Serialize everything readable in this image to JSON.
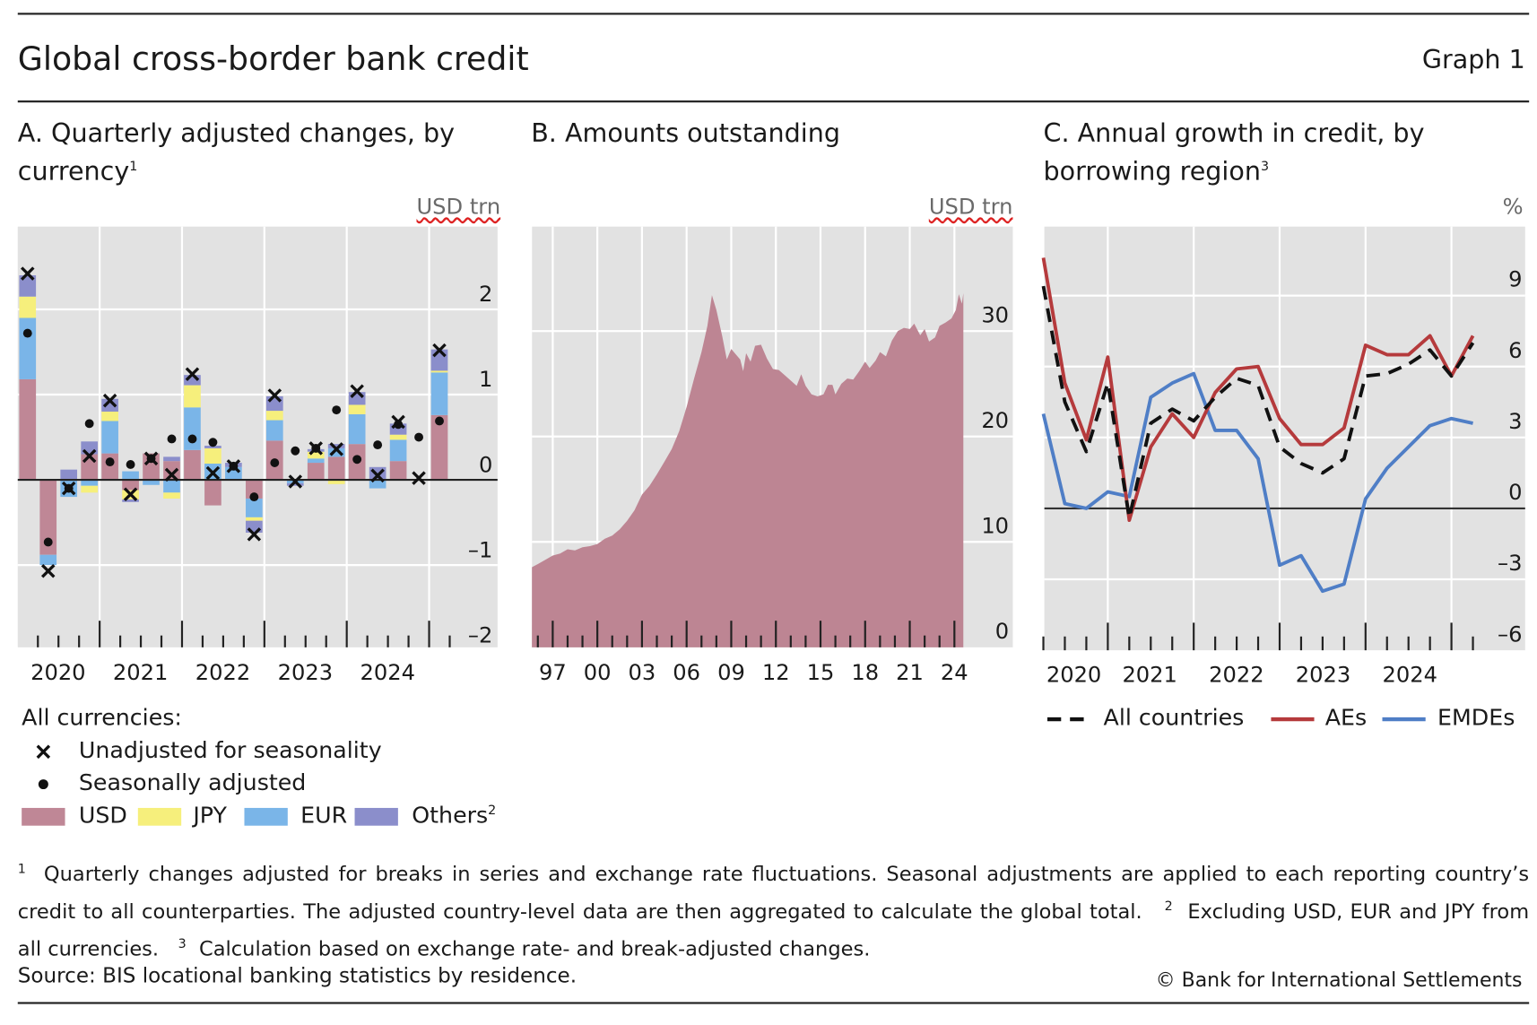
{
  "header": {
    "title": "Global cross-border bank credit",
    "graph_number": "Graph 1"
  },
  "colors": {
    "usd": "#bf8796",
    "jpy": "#f6ef7c",
    "eur": "#7ab5e8",
    "others": "#8b8ecb",
    "area": "#bd8593",
    "aes": "#b53a3c",
    "emdes": "#4f7ec6",
    "all": "#111111",
    "panel_bg": "#e2e2e2"
  },
  "chart_data": [
    {
      "type": "bar",
      "title": "A. Quarterly adjusted changes, by currency",
      "title_note": "1",
      "unit": "USD trn",
      "ylim": [
        -2,
        3
      ],
      "yticks": [
        {
          "v": 2,
          "label": "2"
        },
        {
          "v": 1,
          "label": "1"
        },
        {
          "v": 0,
          "label": "0"
        },
        {
          "v": -1,
          "label": "–1"
        },
        {
          "v": -2,
          "label": "–2"
        }
      ],
      "year_labels": [
        "2020",
        "2021",
        "2022",
        "2023",
        "2024"
      ],
      "categories": [
        "2020Q1",
        "2020Q2",
        "2020Q3",
        "2020Q4",
        "2021Q1",
        "2021Q2",
        "2021Q3",
        "2021Q4",
        "2022Q1",
        "2022Q2",
        "2022Q3",
        "2022Q4",
        "2023Q1",
        "2023Q2",
        "2023Q3",
        "2023Q4",
        "2024Q1",
        "2024Q2",
        "2024Q3",
        "2024Q4",
        "2025Q1"
      ],
      "series": [
        {
          "name": "USD",
          "values": [
            1.18,
            -0.88,
            0,
            0.3,
            0.31,
            -0.12,
            0.31,
            0.22,
            0.35,
            -0.3,
            0,
            -0.22,
            0.46,
            0,
            0.2,
            0.27,
            0.42,
            0,
            0.22,
            0,
            0.76
          ]
        },
        {
          "name": "EUR",
          "values": [
            0.72,
            -0.12,
            -0.2,
            -0.07,
            0.38,
            0.1,
            -0.06,
            -0.15,
            0.5,
            0.19,
            0.15,
            -0.22,
            0.24,
            -0.04,
            0.05,
            0.1,
            0.35,
            -0.1,
            0.25,
            0,
            0.5
          ]
        },
        {
          "name": "JPY",
          "values": [
            0.25,
            0,
            0,
            -0.08,
            0.11,
            -0.11,
            0,
            -0.07,
            0.26,
            0.18,
            0,
            -0.04,
            0.11,
            0,
            0.08,
            -0.05,
            0.11,
            0,
            0.06,
            0,
            0.02
          ]
        },
        {
          "name": "Others",
          "values": [
            0.25,
            0,
            0.12,
            0.15,
            0.15,
            -0.03,
            0,
            0.05,
            0.12,
            0.03,
            0.05,
            -0.14,
            0.17,
            -0.03,
            0.03,
            0.05,
            0.15,
            0.15,
            0.13,
            0,
            0.25
          ]
        }
      ],
      "markers": [
        {
          "name": "Unadjusted for seasonality",
          "values": [
            2.42,
            -1.07,
            -0.1,
            0.28,
            0.93,
            -0.17,
            0.25,
            0.06,
            1.24,
            0.08,
            0.16,
            -0.64,
            0.99,
            -0.02,
            0.37,
            0.36,
            1.04,
            0.05,
            0.68,
            0.02,
            1.52
          ]
        },
        {
          "name": "Seasonally adjusted",
          "values": [
            1.72,
            -0.73,
            -0.1,
            0.66,
            0.21,
            0.18,
            0.25,
            0.48,
            0.48,
            0.44,
            0.16,
            -0.2,
            0.2,
            0.34,
            0.37,
            0.82,
            0.24,
            0.41,
            0.65,
            0.5,
            0.69
          ]
        }
      ],
      "legend": {
        "heading": "All currencies:",
        "unadjusted": "Unadjusted for seasonality",
        "seasonal": "Seasonally adjusted",
        "usd": "USD",
        "jpy": "JPY",
        "eur": "EUR",
        "others": "Others",
        "others_note": "2"
      }
    },
    {
      "type": "area",
      "title": "B. Amounts outstanding",
      "unit": "USD trn",
      "ylim": [
        0,
        40
      ],
      "yticks": [
        {
          "v": 30,
          "label": "30"
        },
        {
          "v": 20,
          "label": "20"
        },
        {
          "v": 10,
          "label": "10"
        },
        {
          "v": 0,
          "label": "0"
        }
      ],
      "xticks": [
        {
          "v": 1997,
          "label": "97"
        },
        {
          "v": 2000,
          "label": "00"
        },
        {
          "v": 2003,
          "label": "03"
        },
        {
          "v": 2006,
          "label": "06"
        },
        {
          "v": 2009,
          "label": "09"
        },
        {
          "v": 2012,
          "label": "12"
        },
        {
          "v": 2015,
          "label": "15"
        },
        {
          "v": 2018,
          "label": "18"
        },
        {
          "v": 2021,
          "label": "21"
        },
        {
          "v": 2024,
          "label": "24"
        }
      ],
      "points": [
        [
          1995.6,
          7.6
        ],
        [
          1996,
          7.9
        ],
        [
          1996.5,
          8.3
        ],
        [
          1997,
          8.7
        ],
        [
          1997.5,
          8.9
        ],
        [
          1998,
          9.3
        ],
        [
          1998.5,
          9.2
        ],
        [
          1999,
          9.5
        ],
        [
          1999.5,
          9.6
        ],
        [
          2000,
          9.8
        ],
        [
          2000.5,
          10.3
        ],
        [
          2001,
          10.6
        ],
        [
          2001.5,
          11.2
        ],
        [
          2002,
          12.0
        ],
        [
          2002.5,
          13.0
        ],
        [
          2003,
          14.5
        ],
        [
          2003.5,
          15.3
        ],
        [
          2004,
          16.4
        ],
        [
          2004.5,
          17.6
        ],
        [
          2005,
          18.8
        ],
        [
          2005.5,
          20.5
        ],
        [
          2006,
          22.8
        ],
        [
          2006.5,
          25.5
        ],
        [
          2007,
          28.0
        ],
        [
          2007.4,
          30.5
        ],
        [
          2007.7,
          33.4
        ],
        [
          2008,
          32.0
        ],
        [
          2008.4,
          29.5
        ],
        [
          2008.7,
          27.3
        ],
        [
          2009,
          28.3
        ],
        [
          2009.3,
          27.8
        ],
        [
          2009.6,
          27.3
        ],
        [
          2009.8,
          26.2
        ],
        [
          2010,
          27.9
        ],
        [
          2010.3,
          27.1
        ],
        [
          2010.6,
          28.6
        ],
        [
          2011,
          28.7
        ],
        [
          2011.4,
          27.4
        ],
        [
          2011.8,
          26.4
        ],
        [
          2012.2,
          26.3
        ],
        [
          2012.6,
          25.8
        ],
        [
          2013,
          25.3
        ],
        [
          2013.4,
          24.8
        ],
        [
          2013.7,
          25.9
        ],
        [
          2014,
          24.8
        ],
        [
          2014.4,
          24.0
        ],
        [
          2014.8,
          23.8
        ],
        [
          2015.2,
          24.0
        ],
        [
          2015.5,
          24.9
        ],
        [
          2015.8,
          24.9
        ],
        [
          2016,
          24.0
        ],
        [
          2016.4,
          25.0
        ],
        [
          2016.8,
          25.5
        ],
        [
          2017.2,
          25.4
        ],
        [
          2017.6,
          26.2
        ],
        [
          2018,
          27.1
        ],
        [
          2018.3,
          26.5
        ],
        [
          2018.7,
          27.2
        ],
        [
          2019,
          28.0
        ],
        [
          2019.4,
          27.6
        ],
        [
          2019.8,
          29.1
        ],
        [
          2020.2,
          30.0
        ],
        [
          2020.6,
          30.3
        ],
        [
          2021,
          30.2
        ],
        [
          2021.3,
          30.7
        ],
        [
          2021.7,
          29.6
        ],
        [
          2022,
          30.2
        ],
        [
          2022.3,
          29.0
        ],
        [
          2022.7,
          29.4
        ],
        [
          2023,
          30.5
        ],
        [
          2023.4,
          30.8
        ],
        [
          2023.8,
          31.2
        ],
        [
          2024.1,
          32.0
        ],
        [
          2024.3,
          33.5
        ],
        [
          2024.5,
          32.6
        ],
        [
          2024.6,
          33.6
        ]
      ]
    },
    {
      "type": "line",
      "title": "C. Annual growth in credit, by borrowing region",
      "title_note": "3",
      "unit": "%",
      "ylim": [
        -6,
        12
      ],
      "yticks": [
        {
          "v": 9,
          "label": "9"
        },
        {
          "v": 6,
          "label": "6"
        },
        {
          "v": 3,
          "label": "3"
        },
        {
          "v": 0,
          "label": "0"
        },
        {
          "v": -3,
          "label": "–3"
        },
        {
          "v": -6,
          "label": "–6"
        }
      ],
      "year_labels": [
        "2020",
        "2021",
        "2022",
        "2023",
        "2024"
      ],
      "series": [
        {
          "name": "All countries",
          "values": [
            9.4,
            4.5,
            2.4,
            5.3,
            -0.4,
            3.6,
            4.2,
            3.7,
            4.7,
            5.5,
            5.2,
            2.6,
            1.9,
            1.5,
            2.1,
            5.6,
            5.7,
            6.1,
            6.7,
            5.6,
            7.0
          ]
        },
        {
          "name": "AEs",
          "values": [
            10.6,
            5.3,
            2.9,
            6.4,
            -0.5,
            2.6,
            4.0,
            3.0,
            4.9,
            5.9,
            6.0,
            3.8,
            2.7,
            2.7,
            3.4,
            6.9,
            6.5,
            6.5,
            7.3,
            5.6,
            7.3
          ]
        },
        {
          "name": "EMDEs",
          "values": [
            4.0,
            0.2,
            0.0,
            0.7,
            0.5,
            4.7,
            5.3,
            5.7,
            3.3,
            3.3,
            2.1,
            -2.4,
            -2.0,
            -3.5,
            -3.2,
            0.4,
            1.7,
            2.6,
            3.5,
            3.8,
            3.6
          ]
        }
      ]
    }
  ],
  "footnotes": {
    "n1": "1",
    "t1": "Quarterly changes adjusted for breaks in series and exchange rate fluctuations. Seasonal adjustments are applied to each reporting country’s credit to all counterparties. The adjusted country-level data are then aggregated to calculate the global total.",
    "n2": "2",
    "t2": "Excluding USD, EUR and JPY from all currencies.",
    "n3": "3",
    "t3": "Calculation based on exchange rate- and break-adjusted changes."
  },
  "source": "Source: BIS locational banking statistics by residence.",
  "copyright": "© Bank for International Settlements"
}
